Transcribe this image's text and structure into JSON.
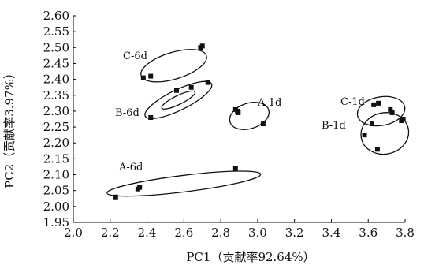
{
  "chart_data": {
    "type": "scatter",
    "title": "",
    "xlabel": "PC1（贡献率92.64%）",
    "ylabel": "PC2（贡献率3.97%）",
    "xlim": [
      2.0,
      3.8
    ],
    "ylim": [
      1.95,
      2.6
    ],
    "xticks": [
      "2.0",
      "2.2",
      "2.4",
      "2.6",
      "2.8",
      "3.0",
      "3.2",
      "3.4",
      "3.6",
      "3.8"
    ],
    "yticks": [
      "1.95",
      "2.00",
      "2.05",
      "2.10",
      "2.15",
      "2.20",
      "2.25",
      "2.30",
      "2.35",
      "2.40",
      "2.45",
      "2.50",
      "2.55",
      "2.60"
    ],
    "grid": false,
    "groups": [
      {
        "name": "C-6d",
        "points": [
          [
            2.38,
            2.405
          ],
          [
            2.42,
            2.41
          ],
          [
            2.69,
            2.5
          ],
          [
            2.7,
            2.505
          ]
        ],
        "ellipse": {
          "cx": 2.545,
          "cy": 2.443,
          "rx": 0.185,
          "ry": 0.042,
          "angle_deg": -17
        }
      },
      {
        "name": "B-6d",
        "points": [
          [
            2.42,
            2.28
          ],
          [
            2.56,
            2.365
          ],
          [
            2.64,
            2.375
          ],
          [
            2.73,
            2.39
          ]
        ],
        "ellipse": {
          "cx": 2.57,
          "cy": 2.335,
          "rx": 0.2,
          "ry": 0.032,
          "angle_deg": -26
        },
        "inner_ellipse": {
          "cx": 2.57,
          "cy": 2.335,
          "rx": 0.1,
          "ry": 0.014,
          "angle_deg": -26
        }
      },
      {
        "name": "A-1d",
        "points": [
          [
            2.88,
            2.305
          ],
          [
            2.89,
            2.3
          ],
          [
            2.895,
            2.295
          ],
          [
            3.03,
            2.26
          ]
        ],
        "ellipse": {
          "cx": 2.955,
          "cy": 2.285,
          "rx": 0.11,
          "ry": 0.04,
          "angle_deg": -18
        }
      },
      {
        "name": "C-1d",
        "points": [
          [
            3.63,
            2.32
          ],
          [
            3.655,
            2.325
          ],
          [
            3.72,
            2.305
          ],
          [
            3.73,
            2.295
          ]
        ],
        "ellipse": {
          "cx": 3.67,
          "cy": 2.3,
          "rx": 0.13,
          "ry": 0.045,
          "angle_deg": -10
        }
      },
      {
        "name": "B-1d",
        "points": [
          [
            3.58,
            2.225
          ],
          [
            3.62,
            2.26
          ],
          [
            3.65,
            2.18
          ],
          [
            3.78,
            2.27
          ],
          [
            3.79,
            2.275
          ]
        ],
        "ellipse": {
          "cx": 3.69,
          "cy": 2.23,
          "rx": 0.13,
          "ry": 0.065,
          "angle_deg": -12
        }
      },
      {
        "name": "A-6d",
        "points": [
          [
            2.23,
            2.03
          ],
          [
            2.35,
            2.055
          ],
          [
            2.36,
            2.06
          ],
          [
            2.88,
            2.12
          ]
        ],
        "ellipse": {
          "cx": 2.6,
          "cy": 2.072,
          "rx": 0.42,
          "ry": 0.026,
          "angle_deg": -7
        }
      }
    ]
  }
}
